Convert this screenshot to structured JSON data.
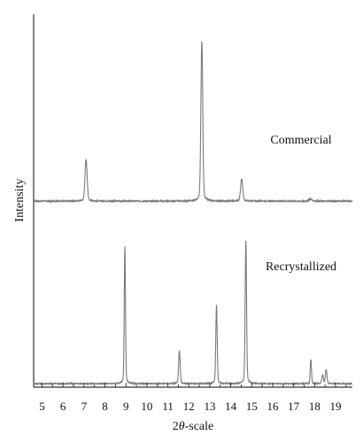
{
  "chart_data": {
    "type": "line",
    "xlabel_prefix": "2",
    "xlabel_symbol": "θ",
    "xlabel_suffix": "-scale",
    "ylabel": "Intensity",
    "xlim": [
      4.6,
      19.8
    ],
    "x_ticks": [
      5,
      6,
      7,
      8,
      9,
      10,
      11,
      12,
      13,
      14,
      15,
      16,
      17,
      18,
      19
    ],
    "x_tick_labels": [
      "5",
      "6",
      "7",
      "8",
      "9",
      "10",
      "11",
      "12",
      "13",
      "14",
      "15",
      "16",
      "17",
      "18",
      "19"
    ],
    "series": [
      {
        "name": "Commercial",
        "baseline_y": 0,
        "peaks": [
          {
            "x": 7.1,
            "y": 0.26,
            "w": 0.07
          },
          {
            "x": 12.62,
            "y": 1.0,
            "w": 0.06
          },
          {
            "x": 14.52,
            "y": 0.14,
            "w": 0.07
          },
          {
            "x": 17.8,
            "y": 0.015,
            "w": 0.08
          }
        ]
      },
      {
        "name": "Recrystallized",
        "baseline_y": 0,
        "peaks": [
          {
            "x": 8.95,
            "y": 0.96,
            "w": 0.04
          },
          {
            "x": 11.55,
            "y": 0.23,
            "w": 0.05
          },
          {
            "x": 13.32,
            "y": 0.55,
            "w": 0.045
          },
          {
            "x": 14.72,
            "y": 1.0,
            "w": 0.045
          },
          {
            "x": 17.82,
            "y": 0.17,
            "w": 0.04
          },
          {
            "x": 18.38,
            "y": 0.06,
            "w": 0.05
          },
          {
            "x": 18.55,
            "y": 0.1,
            "w": 0.05
          }
        ]
      }
    ],
    "colors": {
      "trace": "#7a7a7a",
      "axis": "#333333",
      "text": "#111111"
    }
  }
}
